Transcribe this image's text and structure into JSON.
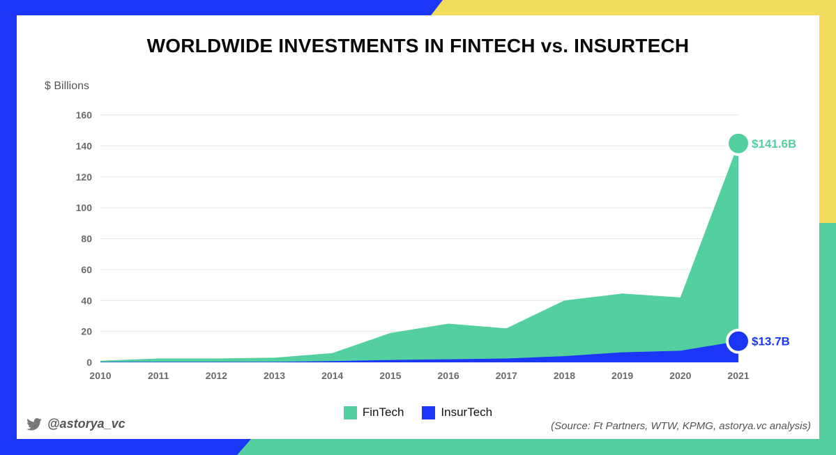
{
  "colors": {
    "fintech": "#54cfa0",
    "insurtech": "#1b36f5",
    "bg_blue": "#1b36f5",
    "bg_yellow": "#f2dc5c",
    "bg_green": "#54cfa0"
  },
  "footer": {
    "handle": "@astorya_vc",
    "handle_icon": "twitter-bird-icon",
    "source": "(Source: Ft Partners, WTW, KPMG, astorya.vc analysis)"
  },
  "chart_data": {
    "type": "area",
    "title": "WORLDWIDE INVESTMENTS IN FINTECH vs. INSURTECH",
    "ylabel": "$ Billions",
    "xlabel": "",
    "x": [
      "2010",
      "2011",
      "2012",
      "2013",
      "2014",
      "2015",
      "2016",
      "2017",
      "2018",
      "2019",
      "2020",
      "2021"
    ],
    "ylim": [
      0,
      160
    ],
    "yticks": [
      0,
      20,
      40,
      60,
      80,
      100,
      120,
      140,
      160
    ],
    "grid": true,
    "legend_position": "bottom",
    "series": [
      {
        "name": "FinTech",
        "values": [
          1,
          2.5,
          2.5,
          3,
          6,
          19,
          25,
          22,
          40,
          44.5,
          42,
          141.6
        ]
      },
      {
        "name": "InsurTech",
        "values": [
          0.2,
          0.3,
          0.3,
          0.3,
          0.8,
          1.5,
          2,
          2.5,
          4,
          6.5,
          7.5,
          13.7
        ]
      }
    ],
    "annotations": [
      {
        "series": "FinTech",
        "x": "2021",
        "label": "$141.6B"
      },
      {
        "series": "InsurTech",
        "x": "2021",
        "label": "$13.7B"
      }
    ]
  }
}
